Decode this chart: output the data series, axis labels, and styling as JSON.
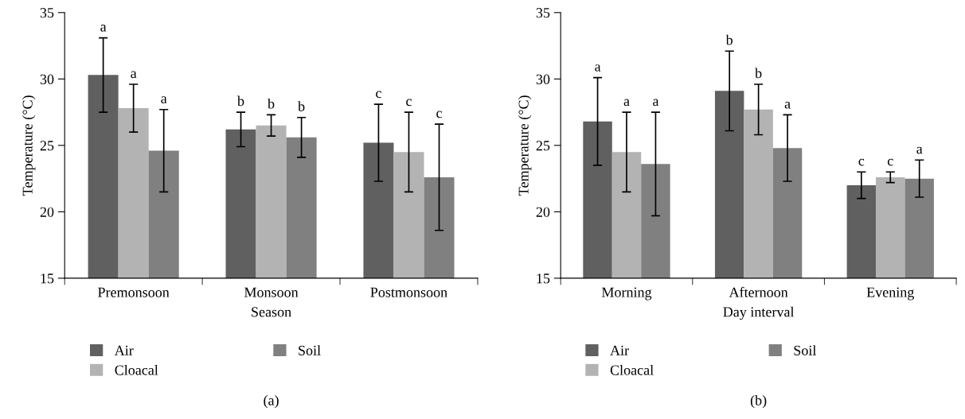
{
  "chart_data": [
    {
      "type": "bar",
      "xlabel": "Season",
      "ylabel": "Temperature (°C)",
      "categories": [
        "Premonsoon",
        "Monsoon",
        "Postmonsoon"
      ],
      "ylim": [
        15,
        35
      ],
      "yticks": [
        15,
        20,
        25,
        30,
        35
      ],
      "grid": false,
      "legend": "bottom",
      "annotations": [
        "a",
        "a",
        "a",
        "b",
        "b",
        "b",
        "c",
        "c",
        "c",
        "(a)"
      ],
      "series": [
        {
          "name": "Air",
          "color": "#606060",
          "values": [
            30.3,
            26.2,
            25.2
          ],
          "errors": [
            2.8,
            1.3,
            2.9
          ]
        },
        {
          "name": "Cloacal",
          "color": "#b3b3b3",
          "values": [
            27.8,
            26.5,
            24.5
          ],
          "errors": [
            1.8,
            0.8,
            3.0
          ]
        },
        {
          "name": "Soil",
          "color": "#808080",
          "values": [
            24.6,
            25.6,
            22.6
          ],
          "errors": [
            3.1,
            1.5,
            4.0
          ]
        }
      ]
    },
    {
      "type": "bar",
      "xlabel": "Day interval",
      "ylabel": "Temperature (°C)",
      "categories": [
        "Morning",
        "Afternoon",
        "Evening"
      ],
      "ylim": [
        15,
        35
      ],
      "yticks": [
        15,
        20,
        25,
        30,
        35
      ],
      "grid": false,
      "legend": "bottom",
      "annotations": [
        "a",
        "a",
        "a",
        "b",
        "b",
        "a",
        "c",
        "c",
        "a",
        "(b)"
      ],
      "series": [
        {
          "name": "Air",
          "color": "#606060",
          "values": [
            26.8,
            29.1,
            22.0
          ],
          "errors": [
            3.3,
            3.0,
            1.0
          ]
        },
        {
          "name": "Cloacal",
          "color": "#b3b3b3",
          "values": [
            24.5,
            27.7,
            22.6
          ],
          "errors": [
            3.0,
            1.9,
            0.4
          ]
        },
        {
          "name": "Soil",
          "color": "#808080",
          "values": [
            23.6,
            24.8,
            22.5
          ],
          "errors": [
            3.9,
            2.5,
            1.4
          ]
        }
      ]
    }
  ]
}
